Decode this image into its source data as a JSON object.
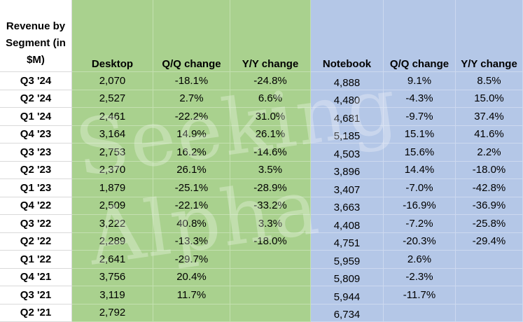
{
  "chart_data": {
    "type": "table",
    "header_label": "Revenue by Segment (in $M)",
    "columns": [
      "Desktop",
      "Q/Q change",
      "Y/Y change",
      "Notebook",
      "Q/Q change",
      "Y/Y change"
    ],
    "rows": [
      {
        "label": "Q3 '24",
        "cells": [
          "2,070",
          "-18.1%",
          "-24.8%",
          "4,888",
          "9.1%",
          "8.5%"
        ]
      },
      {
        "label": "Q2 '24",
        "cells": [
          "2,527",
          "2.7%",
          "6.6%",
          "4,480",
          "-4.3%",
          "15.0%"
        ]
      },
      {
        "label": "Q1 '24",
        "cells": [
          "2,461",
          "-22.2%",
          "31.0%",
          "4,681",
          "-9.7%",
          "37.4%"
        ]
      },
      {
        "label": "Q4 '23",
        "cells": [
          "3,164",
          "14.9%",
          "26.1%",
          "5,185",
          "15.1%",
          "41.6%"
        ]
      },
      {
        "label": "Q3 '23",
        "cells": [
          "2,753",
          "16.2%",
          "-14.6%",
          "4,503",
          "15.6%",
          "2.2%"
        ]
      },
      {
        "label": "Q2 '23",
        "cells": [
          "2,370",
          "26.1%",
          "3.5%",
          "3,896",
          "14.4%",
          "-18.0%"
        ]
      },
      {
        "label": "Q1 '23",
        "cells": [
          "1,879",
          "-25.1%",
          "-28.9%",
          "3,407",
          "-7.0%",
          "-42.8%"
        ]
      },
      {
        "label": "Q4 '22",
        "cells": [
          "2,509",
          "-22.1%",
          "-33.2%",
          "3,663",
          "-16.9%",
          "-36.9%"
        ]
      },
      {
        "label": "Q3 '22",
        "cells": [
          "3,222",
          "40.8%",
          "3.3%",
          "4,408",
          "-7.2%",
          "-25.8%"
        ]
      },
      {
        "label": "Q2 '22",
        "cells": [
          "2,289",
          "-13.3%",
          "-18.0%",
          "4,751",
          "-20.3%",
          "-29.4%"
        ]
      },
      {
        "label": "Q1 '22",
        "cells": [
          "2,641",
          "-29.7%",
          "",
          "5,959",
          "2.6%",
          ""
        ]
      },
      {
        "label": "Q4 '21",
        "cells": [
          "3,756",
          "20.4%",
          "",
          "5,809",
          "-2.3%",
          ""
        ]
      },
      {
        "label": "Q3 '21",
        "cells": [
          "3,119",
          "11.7%",
          "",
          "5,944",
          "-11.7%",
          ""
        ]
      },
      {
        "label": "Q2 '21",
        "cells": [
          "2,792",
          "",
          "",
          "6,734",
          "",
          ""
        ]
      }
    ],
    "colors": {
      "desktop_block": "#a9d18e",
      "notebook_block": "#b4c7e7",
      "label_column": "#ffffff"
    },
    "watermark": "Seeking Alpha"
  }
}
